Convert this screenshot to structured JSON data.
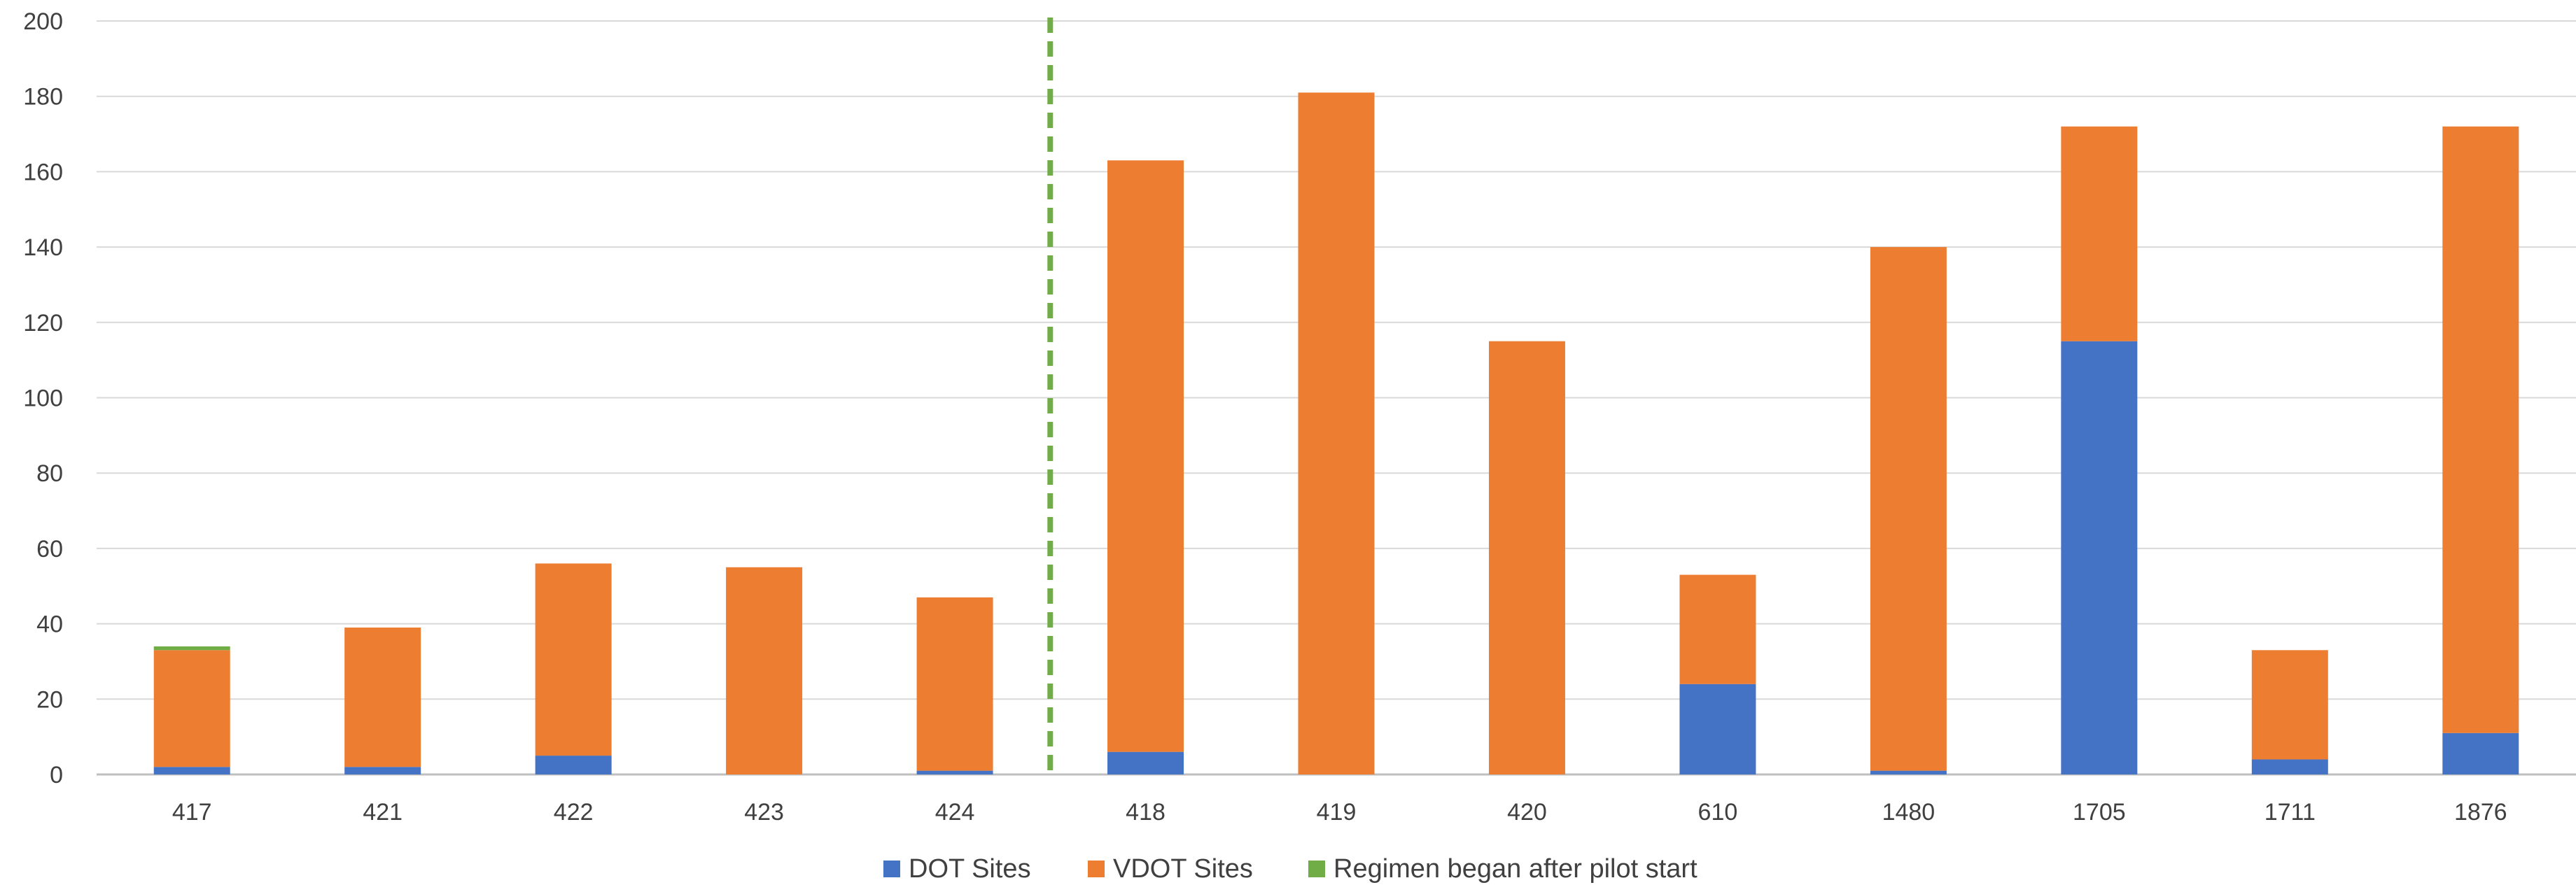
{
  "chart_data": {
    "type": "bar",
    "stacked": true,
    "categories": [
      "417",
      "421",
      "422",
      "423",
      "424",
      "418",
      "419",
      "420",
      "610",
      "1480",
      "1705",
      "1711",
      "1876"
    ],
    "series": [
      {
        "name": "DOT Sites",
        "color": "#4472C4",
        "values": [
          2,
          2,
          5,
          0,
          1,
          6,
          0,
          0,
          24,
          1,
          115,
          4,
          11
        ]
      },
      {
        "name": "VDOT Sites",
        "color": "#ED7D31",
        "values": [
          31,
          37,
          51,
          55,
          46,
          157,
          181,
          115,
          29,
          139,
          57,
          29,
          161
        ]
      }
    ],
    "annotation": {
      "name": "Regimen began after pilot start",
      "color": "#70AD47",
      "divider_after_category": "424",
      "marker_category": "417",
      "marker_value": 1
    },
    "yticks": [
      "0",
      "20",
      "40",
      "60",
      "80",
      "100",
      "120",
      "140",
      "160",
      "180",
      "200"
    ],
    "ylim": [
      0,
      200
    ],
    "grid": true,
    "legend_position": "bottom",
    "title": "",
    "xlabel": "",
    "ylabel": ""
  }
}
